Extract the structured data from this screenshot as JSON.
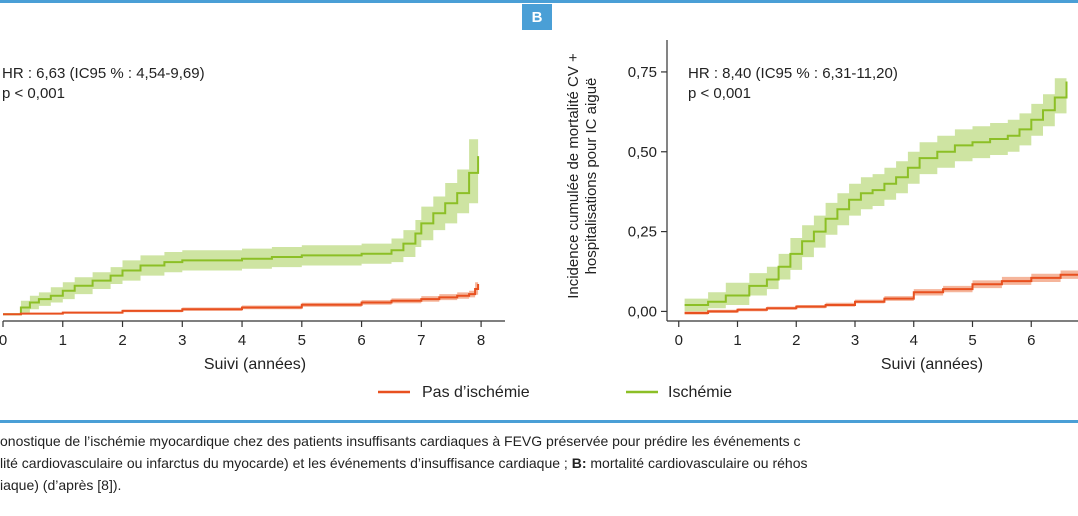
{
  "figure": {
    "panel_b_label": "B",
    "caption_lines": [
      [
        "onostique de l’ischémie myocardique chez des patients insuffisants cardiaques à FEVG préservée pour prédire les événements c"
      ],
      [
        "lité cardiovasculaire ou infarctus du myocarde) et les événements d’insuffisance cardiaque ; ",
        "B:",
        " mortalité cardiovasculaire ou réhos"
      ],
      [
        "iaque) (d’après [8])."
      ]
    ]
  },
  "chart_data": [
    {
      "type": "line",
      "panel": "A",
      "annotation": [
        "HR : 6,63 (IC95 % : 4,54-9,69)",
        "p < 0,001"
      ],
      "xlabel": "Suivi (années)",
      "ylabel": "",
      "x_ticks": [
        0,
        1,
        2,
        3,
        4,
        5,
        6,
        7,
        8
      ],
      "xlim": [
        0,
        8.4
      ],
      "ylim": [
        -0.02,
        0.8
      ],
      "y_ticks": [],
      "series": [
        {
          "name": "Ischémie",
          "color": "#8cbf26",
          "band_color": "#c5df92",
          "x": [
            0,
            0.3,
            0.45,
            0.6,
            0.8,
            1.0,
            1.2,
            1.5,
            1.8,
            2.0,
            2.3,
            2.7,
            3.0,
            3.5,
            4.0,
            4.5,
            5.0,
            5.5,
            6.0,
            6.5,
            6.7,
            6.9,
            7.0,
            7.2,
            7.4,
            7.6,
            7.8,
            7.95
          ],
          "y": [
            0.0,
            0.02,
            0.035,
            0.045,
            0.055,
            0.07,
            0.085,
            0.1,
            0.115,
            0.13,
            0.145,
            0.155,
            0.16,
            0.16,
            0.165,
            0.17,
            0.175,
            0.175,
            0.18,
            0.19,
            0.21,
            0.24,
            0.27,
            0.3,
            0.33,
            0.36,
            0.42,
            0.47
          ],
          "lower": [
            0.0,
            0.005,
            0.015,
            0.025,
            0.035,
            0.045,
            0.06,
            0.075,
            0.09,
            0.1,
            0.115,
            0.125,
            0.13,
            0.13,
            0.135,
            0.14,
            0.145,
            0.145,
            0.15,
            0.155,
            0.17,
            0.2,
            0.22,
            0.25,
            0.27,
            0.3,
            0.33,
            0.38
          ],
          "upper": [
            0.0,
            0.04,
            0.055,
            0.065,
            0.08,
            0.095,
            0.11,
            0.125,
            0.14,
            0.16,
            0.175,
            0.185,
            0.19,
            0.19,
            0.195,
            0.2,
            0.205,
            0.205,
            0.21,
            0.225,
            0.25,
            0.28,
            0.32,
            0.35,
            0.39,
            0.43,
            0.52,
            0.56
          ]
        },
        {
          "name": "Pas d’ischémie",
          "color": "#e8501f",
          "band_color": "#f3a88a",
          "x": [
            0,
            0.3,
            1.0,
            2.0,
            3.0,
            4.0,
            5.0,
            6.0,
            6.5,
            7.0,
            7.3,
            7.6,
            7.8,
            7.9,
            7.95
          ],
          "y": [
            0.0,
            0.002,
            0.005,
            0.01,
            0.015,
            0.02,
            0.028,
            0.035,
            0.04,
            0.045,
            0.05,
            0.055,
            0.06,
            0.075,
            0.09
          ],
          "lower": [
            0.0,
            0.0,
            0.002,
            0.006,
            0.01,
            0.015,
            0.022,
            0.028,
            0.033,
            0.037,
            0.042,
            0.046,
            0.05,
            0.058,
            0.065
          ],
          "upper": [
            0.0,
            0.004,
            0.008,
            0.014,
            0.02,
            0.026,
            0.034,
            0.042,
            0.047,
            0.054,
            0.06,
            0.065,
            0.07,
            0.095,
            0.12
          ]
        }
      ]
    },
    {
      "type": "line",
      "panel": "B",
      "annotation": [
        "HR : 8,40 (IC95 % : 6,31-11,20)",
        "p < 0,001"
      ],
      "xlabel": "Suivi (années)",
      "ylabel": [
        "Incidence cumulée de mortalité CV +",
        "hospitalisations pour IC aiguë"
      ],
      "x_ticks": [
        0,
        1,
        2,
        3,
        4,
        5,
        6
      ],
      "xlim": [
        -0.2,
        7.0
      ],
      "ylim": [
        -0.03,
        0.85
      ],
      "y_ticks": [
        "0,00",
        "0,25",
        "0,50",
        "0,75"
      ],
      "y_tick_values": [
        0,
        0.25,
        0.5,
        0.75
      ],
      "series": [
        {
          "name": "Ischémie",
          "color": "#8cbf26",
          "band_color": "#c5df92",
          "x": [
            0.1,
            0.5,
            0.8,
            1.2,
            1.5,
            1.7,
            1.9,
            2.1,
            2.3,
            2.5,
            2.7,
            2.9,
            3.1,
            3.3,
            3.5,
            3.7,
            3.9,
            4.1,
            4.4,
            4.7,
            5.0,
            5.3,
            5.6,
            5.8,
            6.0,
            6.2,
            6.4,
            6.6
          ],
          "y": [
            0.02,
            0.03,
            0.05,
            0.08,
            0.1,
            0.14,
            0.18,
            0.22,
            0.25,
            0.29,
            0.32,
            0.35,
            0.37,
            0.38,
            0.4,
            0.42,
            0.45,
            0.48,
            0.5,
            0.52,
            0.53,
            0.54,
            0.55,
            0.57,
            0.6,
            0.63,
            0.67,
            0.72
          ],
          "lower": [
            0.0,
            0.01,
            0.02,
            0.05,
            0.07,
            0.1,
            0.13,
            0.17,
            0.2,
            0.24,
            0.27,
            0.3,
            0.32,
            0.33,
            0.35,
            0.37,
            0.4,
            0.43,
            0.45,
            0.47,
            0.48,
            0.49,
            0.5,
            0.52,
            0.55,
            0.58,
            0.62,
            0.66
          ],
          "upper": [
            0.04,
            0.06,
            0.09,
            0.12,
            0.14,
            0.18,
            0.23,
            0.27,
            0.3,
            0.34,
            0.37,
            0.4,
            0.42,
            0.43,
            0.45,
            0.47,
            0.5,
            0.53,
            0.55,
            0.57,
            0.58,
            0.59,
            0.6,
            0.62,
            0.65,
            0.68,
            0.73,
            0.79
          ]
        },
        {
          "name": "Pas d’ischémie",
          "color": "#e8501f",
          "band_color": "#f3a88a",
          "x": [
            0.1,
            0.5,
            1.0,
            1.5,
            2.0,
            2.5,
            3.0,
            3.5,
            4.0,
            4.5,
            5.0,
            5.5,
            6.0,
            6.5,
            6.9
          ],
          "y": [
            -0.005,
            0.0,
            0.005,
            0.01,
            0.015,
            0.02,
            0.03,
            0.04,
            0.06,
            0.07,
            0.085,
            0.095,
            0.105,
            0.115,
            0.12
          ],
          "lower": [
            -0.01,
            -0.005,
            0.0,
            0.005,
            0.01,
            0.015,
            0.025,
            0.033,
            0.05,
            0.06,
            0.073,
            0.083,
            0.092,
            0.102,
            0.107
          ],
          "upper": [
            0.0,
            0.005,
            0.01,
            0.015,
            0.02,
            0.027,
            0.037,
            0.048,
            0.07,
            0.08,
            0.097,
            0.108,
            0.118,
            0.128,
            0.133
          ]
        }
      ]
    }
  ],
  "legend": [
    {
      "label": "Pas d’ischémie",
      "color": "#e8501f"
    },
    {
      "label": "Ischémie",
      "color": "#8cbf26"
    }
  ]
}
